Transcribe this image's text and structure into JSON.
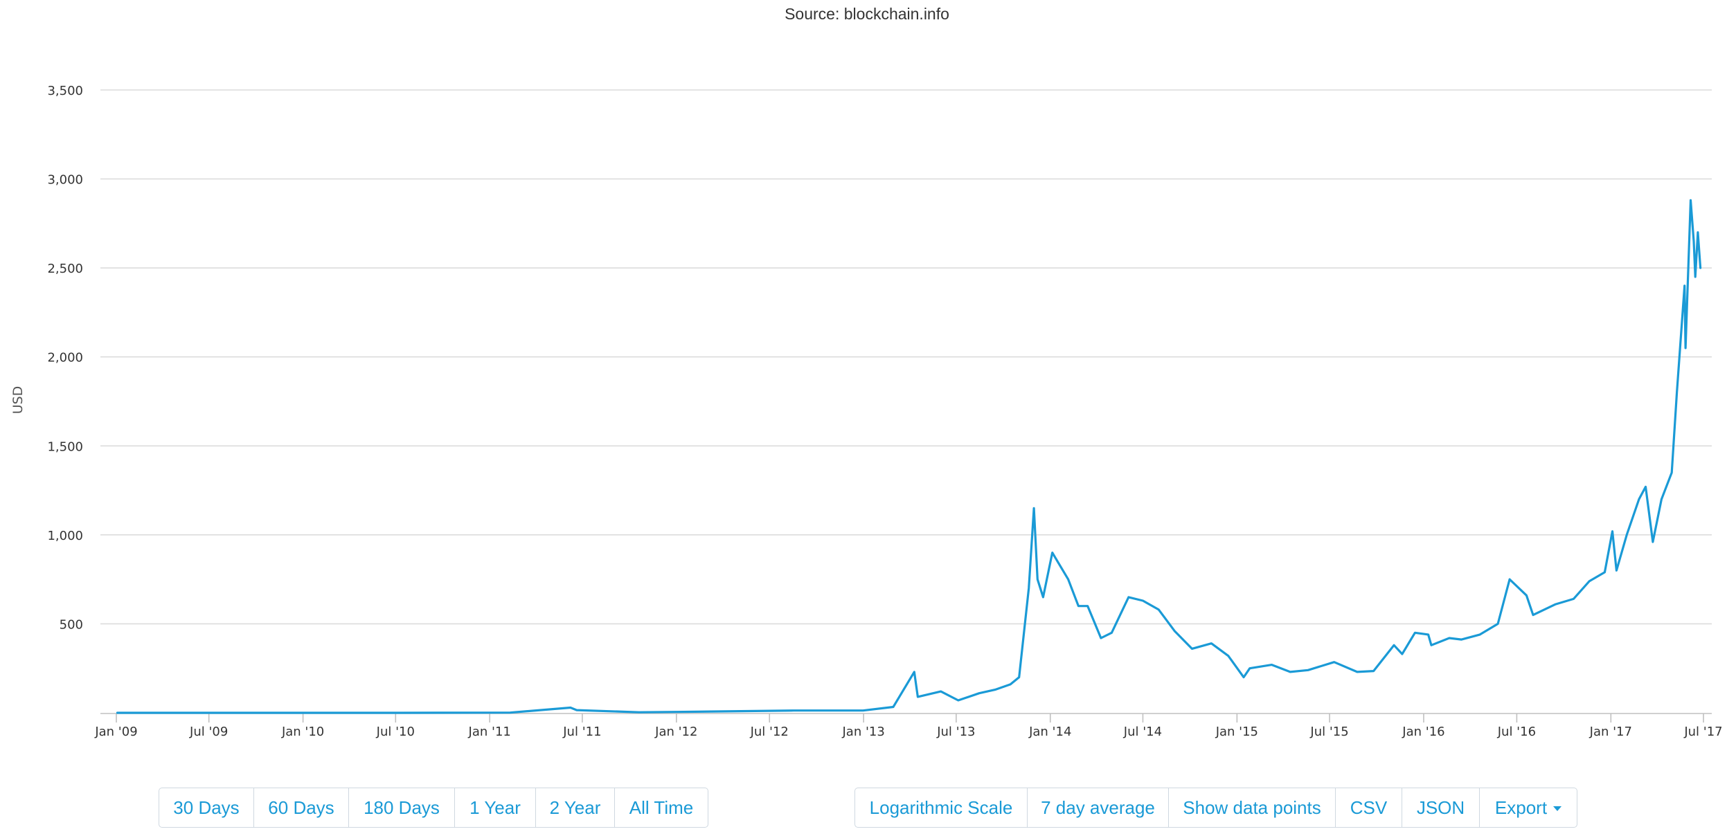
{
  "chart_data": {
    "type": "line",
    "title": "",
    "subtitle": "Source: blockchain.info",
    "xlabel": "",
    "ylabel": "USD",
    "x_range": [
      "2009-01-01",
      "2017-07-01"
    ],
    "ylim": [
      0,
      3500
    ],
    "y_ticks": [
      500,
      1000,
      1500,
      2000,
      2500,
      3000,
      3500
    ],
    "y_tick_labels": [
      "500",
      "1,000",
      "1,500",
      "2,000",
      "2,500",
      "3,000",
      "3,500"
    ],
    "x_ticks": [
      "2009-01-01",
      "2009-07-01",
      "2010-01-01",
      "2010-07-01",
      "2011-01-01",
      "2011-07-01",
      "2012-01-01",
      "2012-07-01",
      "2013-01-01",
      "2013-07-01",
      "2014-01-01",
      "2014-07-01",
      "2015-01-01",
      "2015-07-01",
      "2016-01-01",
      "2016-07-01",
      "2017-01-01",
      "2017-07-01"
    ],
    "x_tick_labels": [
      "Jan '09",
      "Jul '09",
      "Jan '10",
      "Jul '10",
      "Jan '11",
      "Jul '11",
      "Jan '12",
      "Jul '12",
      "Jan '13",
      "Jul '13",
      "Jan '14",
      "Jul '14",
      "Jan '15",
      "Jul '15",
      "Jan '16",
      "Jul '16",
      "Jan '17",
      "Jul '17"
    ],
    "grid": true,
    "line_color": "#1a9ad6",
    "series": [
      {
        "x": [
          "2009-01-03",
          "2010-07-17",
          "2011-02-10",
          "2011-06-08",
          "2011-06-20",
          "2011-10-20",
          "2012-01-01",
          "2012-08-17",
          "2012-12-31",
          "2013-02-28",
          "2013-04-10",
          "2013-04-17",
          "2013-06-01",
          "2013-07-05",
          "2013-08-15",
          "2013-09-15",
          "2013-10-15",
          "2013-11-01",
          "2013-11-20",
          "2013-11-30",
          "2013-12-07",
          "2013-12-18",
          "2014-01-05",
          "2014-02-05",
          "2014-02-25",
          "2014-03-15",
          "2014-04-10",
          "2014-05-01",
          "2014-06-03",
          "2014-07-01",
          "2014-08-01",
          "2014-09-01",
          "2014-10-05",
          "2014-11-12",
          "2014-12-15",
          "2015-01-14",
          "2015-01-26",
          "2015-03-10",
          "2015-04-15",
          "2015-05-20",
          "2015-07-10",
          "2015-08-24",
          "2015-09-25",
          "2015-11-04",
          "2015-11-20",
          "2015-12-15",
          "2016-01-10",
          "2016-01-16",
          "2016-02-20",
          "2016-03-15",
          "2016-04-20",
          "2016-05-25",
          "2016-06-17",
          "2016-07-20",
          "2016-08-02",
          "2016-09-15",
          "2016-10-20",
          "2016-11-20",
          "2016-12-20",
          "2017-01-04",
          "2017-01-12",
          "2017-02-01",
          "2017-02-25",
          "2017-03-10",
          "2017-03-24",
          "2017-04-10",
          "2017-04-30",
          "2017-05-10",
          "2017-05-25",
          "2017-05-27",
          "2017-06-06",
          "2017-06-12",
          "2017-06-15",
          "2017-06-20",
          "2017-06-25"
        ],
        "values": [
          0,
          0.06,
          1,
          29,
          15,
          3,
          5,
          13,
          13,
          33,
          230,
          90,
          120,
          70,
          110,
          130,
          160,
          200,
          700,
          1150,
          750,
          650,
          900,
          750,
          600,
          600,
          420,
          450,
          650,
          630,
          580,
          460,
          360,
          390,
          320,
          200,
          250,
          270,
          230,
          240,
          285,
          230,
          235,
          380,
          330,
          450,
          440,
          380,
          420,
          412,
          440,
          500,
          750,
          660,
          550,
          610,
          640,
          740,
          790,
          1020,
          800,
          1000,
          1200,
          1270,
          960,
          1200,
          1350,
          1800,
          2400,
          2050,
          2880,
          2650,
          2450,
          2700,
          2500
        ]
      }
    ]
  },
  "controls": {
    "range_buttons": [
      "30 Days",
      "60 Days",
      "180 Days",
      "1 Year",
      "2 Year",
      "All Time"
    ],
    "option_buttons": [
      "Logarithmic Scale",
      "7 day average",
      "Show data points",
      "CSV",
      "JSON"
    ],
    "export_label": "Export"
  }
}
